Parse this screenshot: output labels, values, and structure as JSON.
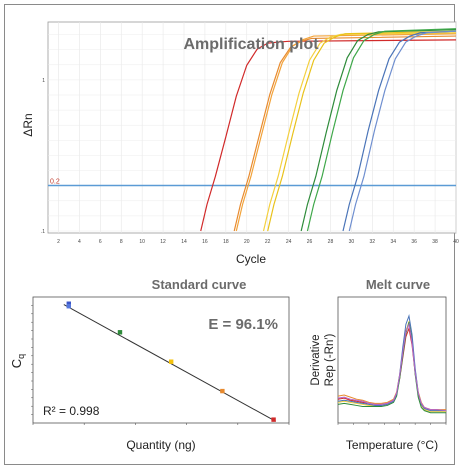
{
  "chart_data": [
    {
      "type": "line",
      "title": "Amplification plot",
      "xlabel": "Cycle",
      "ylabel": "ΔRn",
      "x_ticks": [
        "2",
        "4",
        "6",
        "8",
        "10",
        "12",
        "14",
        "16",
        "18",
        "20",
        "22",
        "24",
        "26",
        "28",
        "30",
        "32",
        "34",
        "36",
        "38",
        "40"
      ],
      "xlim": [
        1,
        40
      ],
      "y_scale": "log",
      "y_ticks": [
        ".1",
        "1"
      ],
      "threshold": {
        "value": 0.2,
        "label": "0.2",
        "color": "#5b9bd5"
      },
      "series": [
        {
          "color": "#d12a2a",
          "x": [
            15.6,
            16.2,
            17.0,
            18.0,
            19.0,
            20.0,
            21.0,
            22.0,
            23.0,
            24.0,
            40.0
          ],
          "y": [
            0.1,
            0.15,
            0.23,
            0.42,
            0.78,
            1.25,
            1.6,
            1.75,
            1.78,
            1.8,
            1.84
          ]
        },
        {
          "color": "#e88a2e",
          "x": [
            18.8,
            19.4,
            20.2,
            21.2,
            22.2,
            23.2,
            24.2,
            25.2,
            26.2,
            40.0
          ],
          "y": [
            0.1,
            0.15,
            0.23,
            0.43,
            0.8,
            1.3,
            1.65,
            1.8,
            1.88,
            1.95
          ]
        },
        {
          "color": "#f2a33a",
          "x": [
            19.0,
            19.6,
            20.4,
            21.4,
            22.4,
            23.4,
            24.4,
            25.4,
            26.4,
            40.0
          ],
          "y": [
            0.1,
            0.15,
            0.23,
            0.43,
            0.8,
            1.3,
            1.68,
            1.85,
            1.95,
            2.02
          ]
        },
        {
          "color": "#f4d03f",
          "x": [
            21.6,
            22.2,
            23.0,
            24.0,
            25.0,
            26.0,
            27.0,
            28.0,
            29.0,
            40.0
          ],
          "y": [
            0.1,
            0.15,
            0.23,
            0.44,
            0.82,
            1.35,
            1.75,
            1.92,
            2.0,
            2.05
          ]
        },
        {
          "color": "#e9c21a",
          "x": [
            22.0,
            22.6,
            23.4,
            24.4,
            25.4,
            26.4,
            27.4,
            28.4,
            29.4,
            40.0
          ],
          "y": [
            0.1,
            0.15,
            0.23,
            0.44,
            0.82,
            1.35,
            1.75,
            1.92,
            2.02,
            2.1
          ]
        },
        {
          "color": "#2e8b3a",
          "x": [
            25.2,
            25.8,
            26.6,
            27.6,
            28.6,
            29.6,
            30.6,
            31.6,
            32.6,
            40.0
          ],
          "y": [
            0.1,
            0.15,
            0.23,
            0.45,
            0.85,
            1.4,
            1.82,
            2.0,
            2.08,
            2.15
          ]
        },
        {
          "color": "#3fa84a",
          "x": [
            25.8,
            26.4,
            27.2,
            28.2,
            29.2,
            30.2,
            31.2,
            32.2,
            33.2,
            40.0
          ],
          "y": [
            0.1,
            0.15,
            0.23,
            0.45,
            0.85,
            1.4,
            1.82,
            2.0,
            2.1,
            2.18
          ]
        },
        {
          "color": "#4a74b8",
          "x": [
            29.2,
            29.8,
            30.6,
            31.6,
            32.6,
            33.6,
            34.6,
            35.6,
            36.6,
            40.0
          ],
          "y": [
            0.1,
            0.15,
            0.23,
            0.46,
            0.85,
            1.38,
            1.78,
            1.95,
            2.05,
            2.1
          ]
        },
        {
          "color": "#6f8fd0",
          "x": [
            29.8,
            30.4,
            31.2,
            32.2,
            33.2,
            34.2,
            35.2,
            36.2,
            37.2,
            40.0
          ],
          "y": [
            0.1,
            0.15,
            0.23,
            0.46,
            0.85,
            1.38,
            1.78,
            1.95,
            2.05,
            2.1
          ]
        }
      ]
    },
    {
      "type": "scatter",
      "title": "Standard curve",
      "xlabel": "Quantity (ng)",
      "ylabel": "Cq",
      "x_scale": "log",
      "xlim": [
        0.001,
        100
      ],
      "ylim": [
        16,
        31
      ],
      "annotations": {
        "efficiency": "E = 96.1%",
        "r2": "R² = 0.998"
      },
      "points": [
        {
          "x": 0.005,
          "y": 30.2,
          "color": "#3a55c8"
        },
        {
          "x": 0.005,
          "y": 29.9,
          "color": "#5577dd"
        },
        {
          "x": 0.05,
          "y": 26.8,
          "color": "#2e8b3a"
        },
        {
          "x": 0.5,
          "y": 23.3,
          "color": "#f4c20d"
        },
        {
          "x": 5,
          "y": 19.8,
          "color": "#e88a2e"
        },
        {
          "x": 50,
          "y": 16.4,
          "color": "#d12a2a"
        }
      ],
      "fit": {
        "x": [
          0.004,
          55
        ],
        "y": [
          30.1,
          16.2
        ],
        "color": "#333333"
      }
    },
    {
      "type": "line",
      "title": "Melt curve",
      "xlabel": "Temperature (°C)",
      "ylabel": "Derivative Rep (-Rn′)",
      "xlim": [
        60,
        95
      ],
      "series": [
        {
          "color": "#d12a2a",
          "x": [
            60,
            62,
            64,
            66,
            68,
            70,
            72,
            74,
            76,
            78,
            79,
            80,
            81,
            82,
            83,
            84,
            85,
            86,
            87,
            88,
            90,
            92,
            95
          ],
          "y": [
            0.2,
            0.21,
            0.19,
            0.18,
            0.17,
            0.16,
            0.15,
            0.15,
            0.16,
            0.19,
            0.25,
            0.4,
            0.6,
            0.8,
            0.88,
            0.72,
            0.45,
            0.25,
            0.16,
            0.12,
            0.1,
            0.1,
            0.09
          ]
        },
        {
          "color": "#e88a2e",
          "x": [
            60,
            62,
            64,
            66,
            68,
            70,
            72,
            74,
            76,
            78,
            79,
            80,
            81,
            82,
            83,
            84,
            85,
            86,
            87,
            88,
            90,
            92,
            95
          ],
          "y": [
            0.23,
            0.24,
            0.22,
            0.2,
            0.19,
            0.17,
            0.16,
            0.16,
            0.17,
            0.2,
            0.27,
            0.44,
            0.66,
            0.86,
            0.93,
            0.76,
            0.48,
            0.27,
            0.17,
            0.12,
            0.1,
            0.1,
            0.1
          ]
        },
        {
          "color": "#f4d03f",
          "x": [
            60,
            62,
            64,
            66,
            68,
            70,
            72,
            74,
            76,
            78,
            79,
            80,
            81,
            82,
            83,
            84,
            85,
            86,
            87,
            88,
            90,
            92,
            95
          ],
          "y": [
            0.17,
            0.18,
            0.17,
            0.16,
            0.15,
            0.14,
            0.14,
            0.14,
            0.15,
            0.18,
            0.24,
            0.42,
            0.64,
            0.84,
            0.95,
            0.78,
            0.46,
            0.24,
            0.14,
            0.1,
            0.08,
            0.08,
            0.08
          ]
        },
        {
          "color": "#2e8b3a",
          "x": [
            60,
            62,
            64,
            66,
            68,
            70,
            72,
            74,
            76,
            78,
            79,
            80,
            81,
            82,
            83,
            84,
            85,
            86,
            87,
            88,
            90,
            92,
            95
          ],
          "y": [
            0.15,
            0.16,
            0.15,
            0.14,
            0.13,
            0.13,
            0.13,
            0.13,
            0.14,
            0.17,
            0.23,
            0.4,
            0.62,
            0.83,
            0.94,
            0.77,
            0.44,
            0.22,
            0.12,
            0.09,
            0.07,
            0.07,
            0.07
          ]
        },
        {
          "color": "#4a74b8",
          "x": [
            60,
            62,
            64,
            66,
            68,
            70,
            72,
            74,
            76,
            78,
            79,
            80,
            81,
            82,
            83,
            84,
            85,
            86,
            87,
            88,
            90,
            92,
            95
          ],
          "y": [
            0.18,
            0.19,
            0.18,
            0.17,
            0.16,
            0.15,
            0.14,
            0.14,
            0.15,
            0.18,
            0.25,
            0.44,
            0.7,
            0.92,
            1.0,
            0.82,
            0.5,
            0.26,
            0.15,
            0.11,
            0.09,
            0.09,
            0.09
          ]
        },
        {
          "color": "#b366cc",
          "x": [
            60,
            62,
            64,
            66,
            68,
            70,
            72,
            74,
            76,
            78,
            79,
            80,
            81,
            82,
            83,
            84,
            85,
            86,
            87,
            88,
            90,
            92,
            95
          ],
          "y": [
            0.21,
            0.22,
            0.2,
            0.19,
            0.18,
            0.16,
            0.15,
            0.15,
            0.16,
            0.19,
            0.26,
            0.43,
            0.65,
            0.85,
            0.92,
            0.74,
            0.46,
            0.26,
            0.16,
            0.12,
            0.1,
            0.1,
            0.09
          ]
        }
      ]
    }
  ]
}
